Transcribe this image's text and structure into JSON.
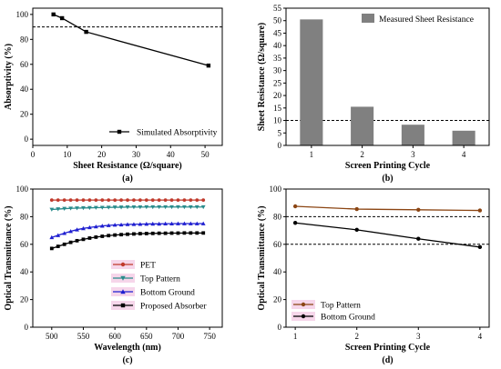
{
  "chart_data": [
    {
      "id": "a",
      "type": "line",
      "panel_label": "(a)",
      "xlabel": "Sheet Resistance (Ω/square)",
      "ylabel": "Absorptivity (%)",
      "xlim": [
        0,
        55
      ],
      "ylim": [
        -5,
        105
      ],
      "xticks": [
        0,
        10,
        20,
        30,
        40,
        50
      ],
      "yticks": [
        0,
        20,
        40,
        60,
        80,
        100
      ],
      "reference_lines": [
        90
      ],
      "legend_position": "bottom-right",
      "series": [
        {
          "name": "Simulated Absorptivity",
          "color": "#000000",
          "marker": "square",
          "x": [
            6,
            8.5,
            15.5,
            51
          ],
          "y": [
            100,
            97,
            86,
            59
          ]
        }
      ]
    },
    {
      "id": "b",
      "type": "bar",
      "panel_label": "(b)",
      "xlabel": "Screen Printing Cycle",
      "ylabel": "Sheet Resistance (Ω/square)",
      "categories": [
        "1",
        "2",
        "3",
        "4"
      ],
      "ylim": [
        0,
        55
      ],
      "yticks": [
        0,
        5,
        10,
        15,
        20,
        25,
        30,
        35,
        40,
        45,
        50,
        55
      ],
      "reference_lines": [
        10
      ],
      "legend_position": "top-right",
      "series": [
        {
          "name": "Measured Sheet Resistance",
          "color": "#808080",
          "values": [
            50.5,
            15.5,
            8.3,
            5.9
          ]
        }
      ]
    },
    {
      "id": "c",
      "type": "line",
      "panel_label": "(c)",
      "xlabel": "Wavelength (nm)",
      "ylabel": "Optical Transmittance (%)",
      "xlim": [
        470,
        770
      ],
      "ylim": [
        0,
        100
      ],
      "xticks": [
        500,
        550,
        600,
        650,
        700,
        750
      ],
      "yticks": [
        0,
        20,
        40,
        60,
        80,
        100
      ],
      "legend_position": "bottom-right",
      "series": [
        {
          "name": "PET",
          "color": "#c0392b",
          "marker": "circle",
          "x": [
            500,
            510,
            520,
            530,
            540,
            550,
            560,
            570,
            580,
            590,
            600,
            610,
            620,
            630,
            640,
            650,
            660,
            670,
            680,
            690,
            700,
            710,
            720,
            730,
            740
          ],
          "y": [
            92,
            92,
            92,
            92,
            92,
            92,
            92,
            92,
            92,
            92,
            92,
            92,
            92,
            92,
            92,
            92,
            92,
            92,
            92,
            92,
            92,
            92,
            92,
            92,
            92
          ]
        },
        {
          "name": "Top Pattern",
          "color": "#2a8c8c",
          "marker": "triangle-down",
          "x": [
            500,
            510,
            520,
            530,
            540,
            550,
            560,
            570,
            580,
            590,
            600,
            610,
            620,
            630,
            640,
            650,
            660,
            670,
            680,
            690,
            700,
            710,
            720,
            730,
            740
          ],
          "y": [
            85.2,
            85.5,
            85.8,
            86,
            86.2,
            86.3,
            86.4,
            86.5,
            86.6,
            86.7,
            86.8,
            86.8,
            86.9,
            86.9,
            86.9,
            87,
            87,
            87,
            87,
            87,
            87,
            87,
            87,
            87,
            87
          ]
        },
        {
          "name": "Bottom Ground",
          "color": "#1f1fd0",
          "marker": "triangle-up",
          "x": [
            500,
            510,
            520,
            530,
            540,
            550,
            560,
            570,
            580,
            590,
            600,
            610,
            620,
            630,
            640,
            650,
            660,
            670,
            680,
            690,
            700,
            710,
            720,
            730,
            740
          ],
          "y": [
            65,
            66.5,
            68,
            69.4,
            70.6,
            71.5,
            72.2,
            72.8,
            73.3,
            73.7,
            74,
            74.2,
            74.4,
            74.5,
            74.6,
            74.7,
            74.8,
            74.8,
            74.9,
            74.9,
            75,
            75,
            75,
            75,
            75
          ]
        },
        {
          "name": "Proposed Absorber",
          "color": "#000000",
          "marker": "square",
          "x": [
            500,
            510,
            520,
            530,
            540,
            550,
            560,
            570,
            580,
            590,
            600,
            610,
            620,
            630,
            640,
            650,
            660,
            670,
            680,
            690,
            700,
            710,
            720,
            730,
            740
          ],
          "y": [
            57,
            58.5,
            60,
            61.4,
            62.6,
            63.6,
            64.5,
            65.2,
            65.8,
            66.3,
            66.7,
            67,
            67.3,
            67.5,
            67.7,
            67.8,
            67.9,
            68,
            68,
            68.1,
            68.1,
            68.2,
            68.2,
            68.2,
            68.2
          ]
        }
      ]
    },
    {
      "id": "d",
      "type": "line",
      "panel_label": "(d)",
      "xlabel": "Screen Printing Cycle",
      "ylabel": "Optical Transmittance (%)",
      "xlim": [
        0.85,
        4.15
      ],
      "ylim": [
        0,
        100
      ],
      "xticks": [
        1,
        2,
        3,
        4
      ],
      "yticks": [
        0,
        20,
        40,
        60,
        80,
        100
      ],
      "reference_lines": [
        80,
        60
      ],
      "legend_position": "bottom-left",
      "series": [
        {
          "name": "Top Pattern",
          "color": "#8b4513",
          "marker": "circle",
          "x": [
            1,
            2,
            3,
            4
          ],
          "y": [
            87.5,
            85.5,
            85,
            84.5
          ]
        },
        {
          "name": "Bottom Ground",
          "color": "#000000",
          "marker": "circle",
          "x": [
            1,
            2,
            3,
            4
          ],
          "y": [
            75.5,
            70.5,
            64,
            58
          ]
        }
      ]
    }
  ]
}
